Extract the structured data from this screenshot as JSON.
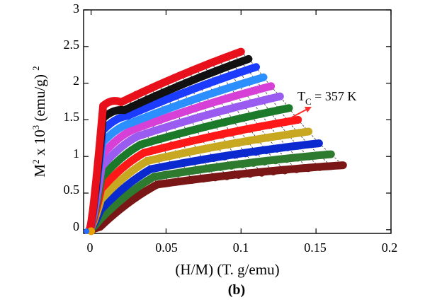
{
  "chart_data": {
    "type": "scatter",
    "title": "",
    "xlabel": "(H/M) (T. g/emu)",
    "ylabel_parts": {
      "m": "M",
      "m_sup": "2",
      "mid": " x 10",
      "mid_sup": "3",
      "unit": " (emu/g) ",
      "unit_sup": "2"
    },
    "xlim": [
      -0.005,
      0.2
    ],
    "ylim": [
      -0.05,
      3.0
    ],
    "xticks": [
      "0",
      "0.05",
      "0.1",
      "0.15",
      "0.2"
    ],
    "xtick_values": [
      0,
      0.05,
      0.1,
      0.15,
      0.2
    ],
    "yticks": [
      "0",
      "0.5",
      "1",
      "1.5",
      "2",
      "2.5",
      "3"
    ],
    "ytick_values": [
      0,
      0.5,
      1,
      1.5,
      2,
      2.5,
      3
    ],
    "grid": false,
    "legend": "none",
    "panel_label": "(b)",
    "annotation": {
      "text_main": "T",
      "text_sub": "C",
      "text_rest": " = 357 K",
      "arrow_color": "#ff2a2a"
    },
    "series_colors": [
      "#e8101a",
      "#111111",
      "#1b3cff",
      "#2b8fff",
      "#d640d6",
      "#9a5cf0",
      "#1a7a2a",
      "#ff1818",
      "#c8a820",
      "#0a2ad0",
      "#2e7a2e",
      "#7a1616"
    ],
    "series": [
      {
        "end": [
          0.1,
          2.43
        ]
      },
      {
        "end": [
          0.105,
          2.33
        ]
      },
      {
        "end": [
          0.11,
          2.22
        ]
      },
      {
        "end": [
          0.115,
          2.08
        ]
      },
      {
        "end": [
          0.12,
          1.96
        ]
      },
      {
        "end": [
          0.126,
          1.82
        ]
      },
      {
        "end": [
          0.132,
          1.66
        ]
      },
      {
        "end": [
          0.138,
          1.5
        ]
      },
      {
        "end": [
          0.145,
          1.34
        ]
      },
      {
        "end": [
          0.152,
          1.18
        ]
      },
      {
        "end": [
          0.16,
          1.03
        ]
      },
      {
        "end": [
          0.168,
          0.88
        ]
      }
    ]
  }
}
